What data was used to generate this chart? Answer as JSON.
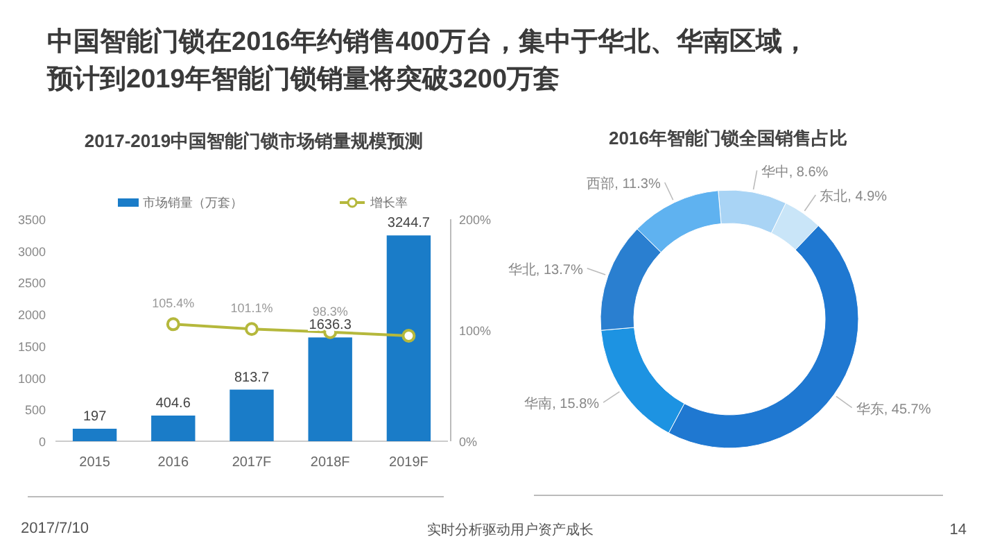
{
  "chart_data": [
    {
      "type": "bar",
      "title": "2017-2019中国智能门锁市场销量规模预测",
      "categories": [
        "2015",
        "2016",
        "2017F",
        "2018F",
        "2019F"
      ],
      "series": [
        {
          "name": "市场销量（万套）",
          "type": "bar",
          "color": "#1a7cc8",
          "values": [
            197,
            404.6,
            813.7,
            1636.3,
            3244.7
          ],
          "value_labels": [
            "197",
            "404.6",
            "813.7",
            "1636.3",
            "3244.7"
          ]
        },
        {
          "name": "增长率",
          "type": "line",
          "axis": "y2",
          "color": "#b5b83c",
          "marker": "circle",
          "values": [
            null,
            105.4,
            101.1,
            98.3,
            95
          ],
          "value_labels": [
            null,
            "105.4%",
            "101.1%",
            "98.3%",
            null
          ]
        }
      ],
      "ylim": [
        0,
        3500
      ],
      "yticks": [
        0,
        500,
        1000,
        1500,
        2000,
        2500,
        3000,
        3500
      ],
      "y2lim": [
        0,
        200
      ],
      "y2ticks": [
        {
          "value": 0,
          "label": "0%"
        },
        {
          "value": 100,
          "label": "100%"
        },
        {
          "value": 200,
          "label": "200%"
        }
      ],
      "legend": "top",
      "annotations": [
        "中国智能门锁在2016年约销售400万台，集中于华北、华南区域，预计到2019年智能门锁销量将突破3200万套",
        "2017/7/10"
      ]
    },
    {
      "type": "donut",
      "title": "2016年智能门锁全国销售占比",
      "categories": [
        "华中",
        "东北",
        "华东",
        "华南",
        "华北",
        "西部"
      ],
      "values": [
        8.6,
        4.9,
        45.7,
        15.8,
        13.7,
        11.3
      ],
      "colors": [
        "#a9d4f5",
        "#c9e5f8",
        "#1f78d1",
        "#1d93e2",
        "#2a7fd0",
        "#5fb2f0"
      ],
      "value_labels": [
        "8.6%",
        "4.9%",
        "45.7%",
        "15.8%",
        "13.7%",
        "11.3%"
      ],
      "annotations": [
        "实时分析驱动用户资产成长",
        "14"
      ]
    }
  ]
}
